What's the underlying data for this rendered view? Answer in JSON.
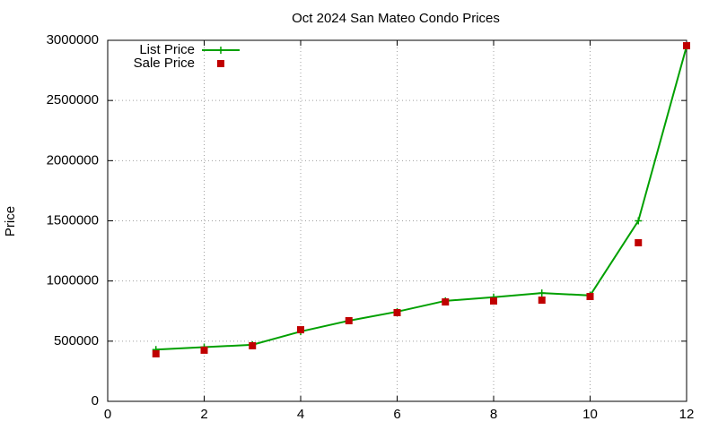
{
  "chart_data": {
    "type": "line",
    "title": "Oct 2024 San Mateo Condo Prices",
    "y_label": "Price",
    "x": [
      1,
      2,
      3,
      4,
      5,
      6,
      7,
      8,
      9,
      10,
      11,
      12
    ],
    "series": [
      {
        "name": "List Price",
        "color": "#00a000",
        "style": "linespoints",
        "values": [
          430000,
          450000,
          470000,
          580000,
          670000,
          745000,
          835000,
          865000,
          900000,
          880000,
          1500000,
          2950000
        ]
      },
      {
        "name": "Sale Price",
        "color": "#c00000",
        "style": "points",
        "values": [
          395000,
          425000,
          462000,
          595000,
          670000,
          737000,
          826000,
          834000,
          841000,
          871000,
          1318000,
          2955000
        ]
      }
    ],
    "xlim": [
      0,
      12
    ],
    "xticks": [
      0,
      2,
      4,
      6,
      8,
      10,
      12
    ],
    "ylim": [
      0,
      3000000
    ],
    "yticks": [
      0,
      500000,
      1000000,
      1500000,
      2000000,
      2500000,
      3000000
    ],
    "grid": true,
    "legend": "top-left"
  }
}
